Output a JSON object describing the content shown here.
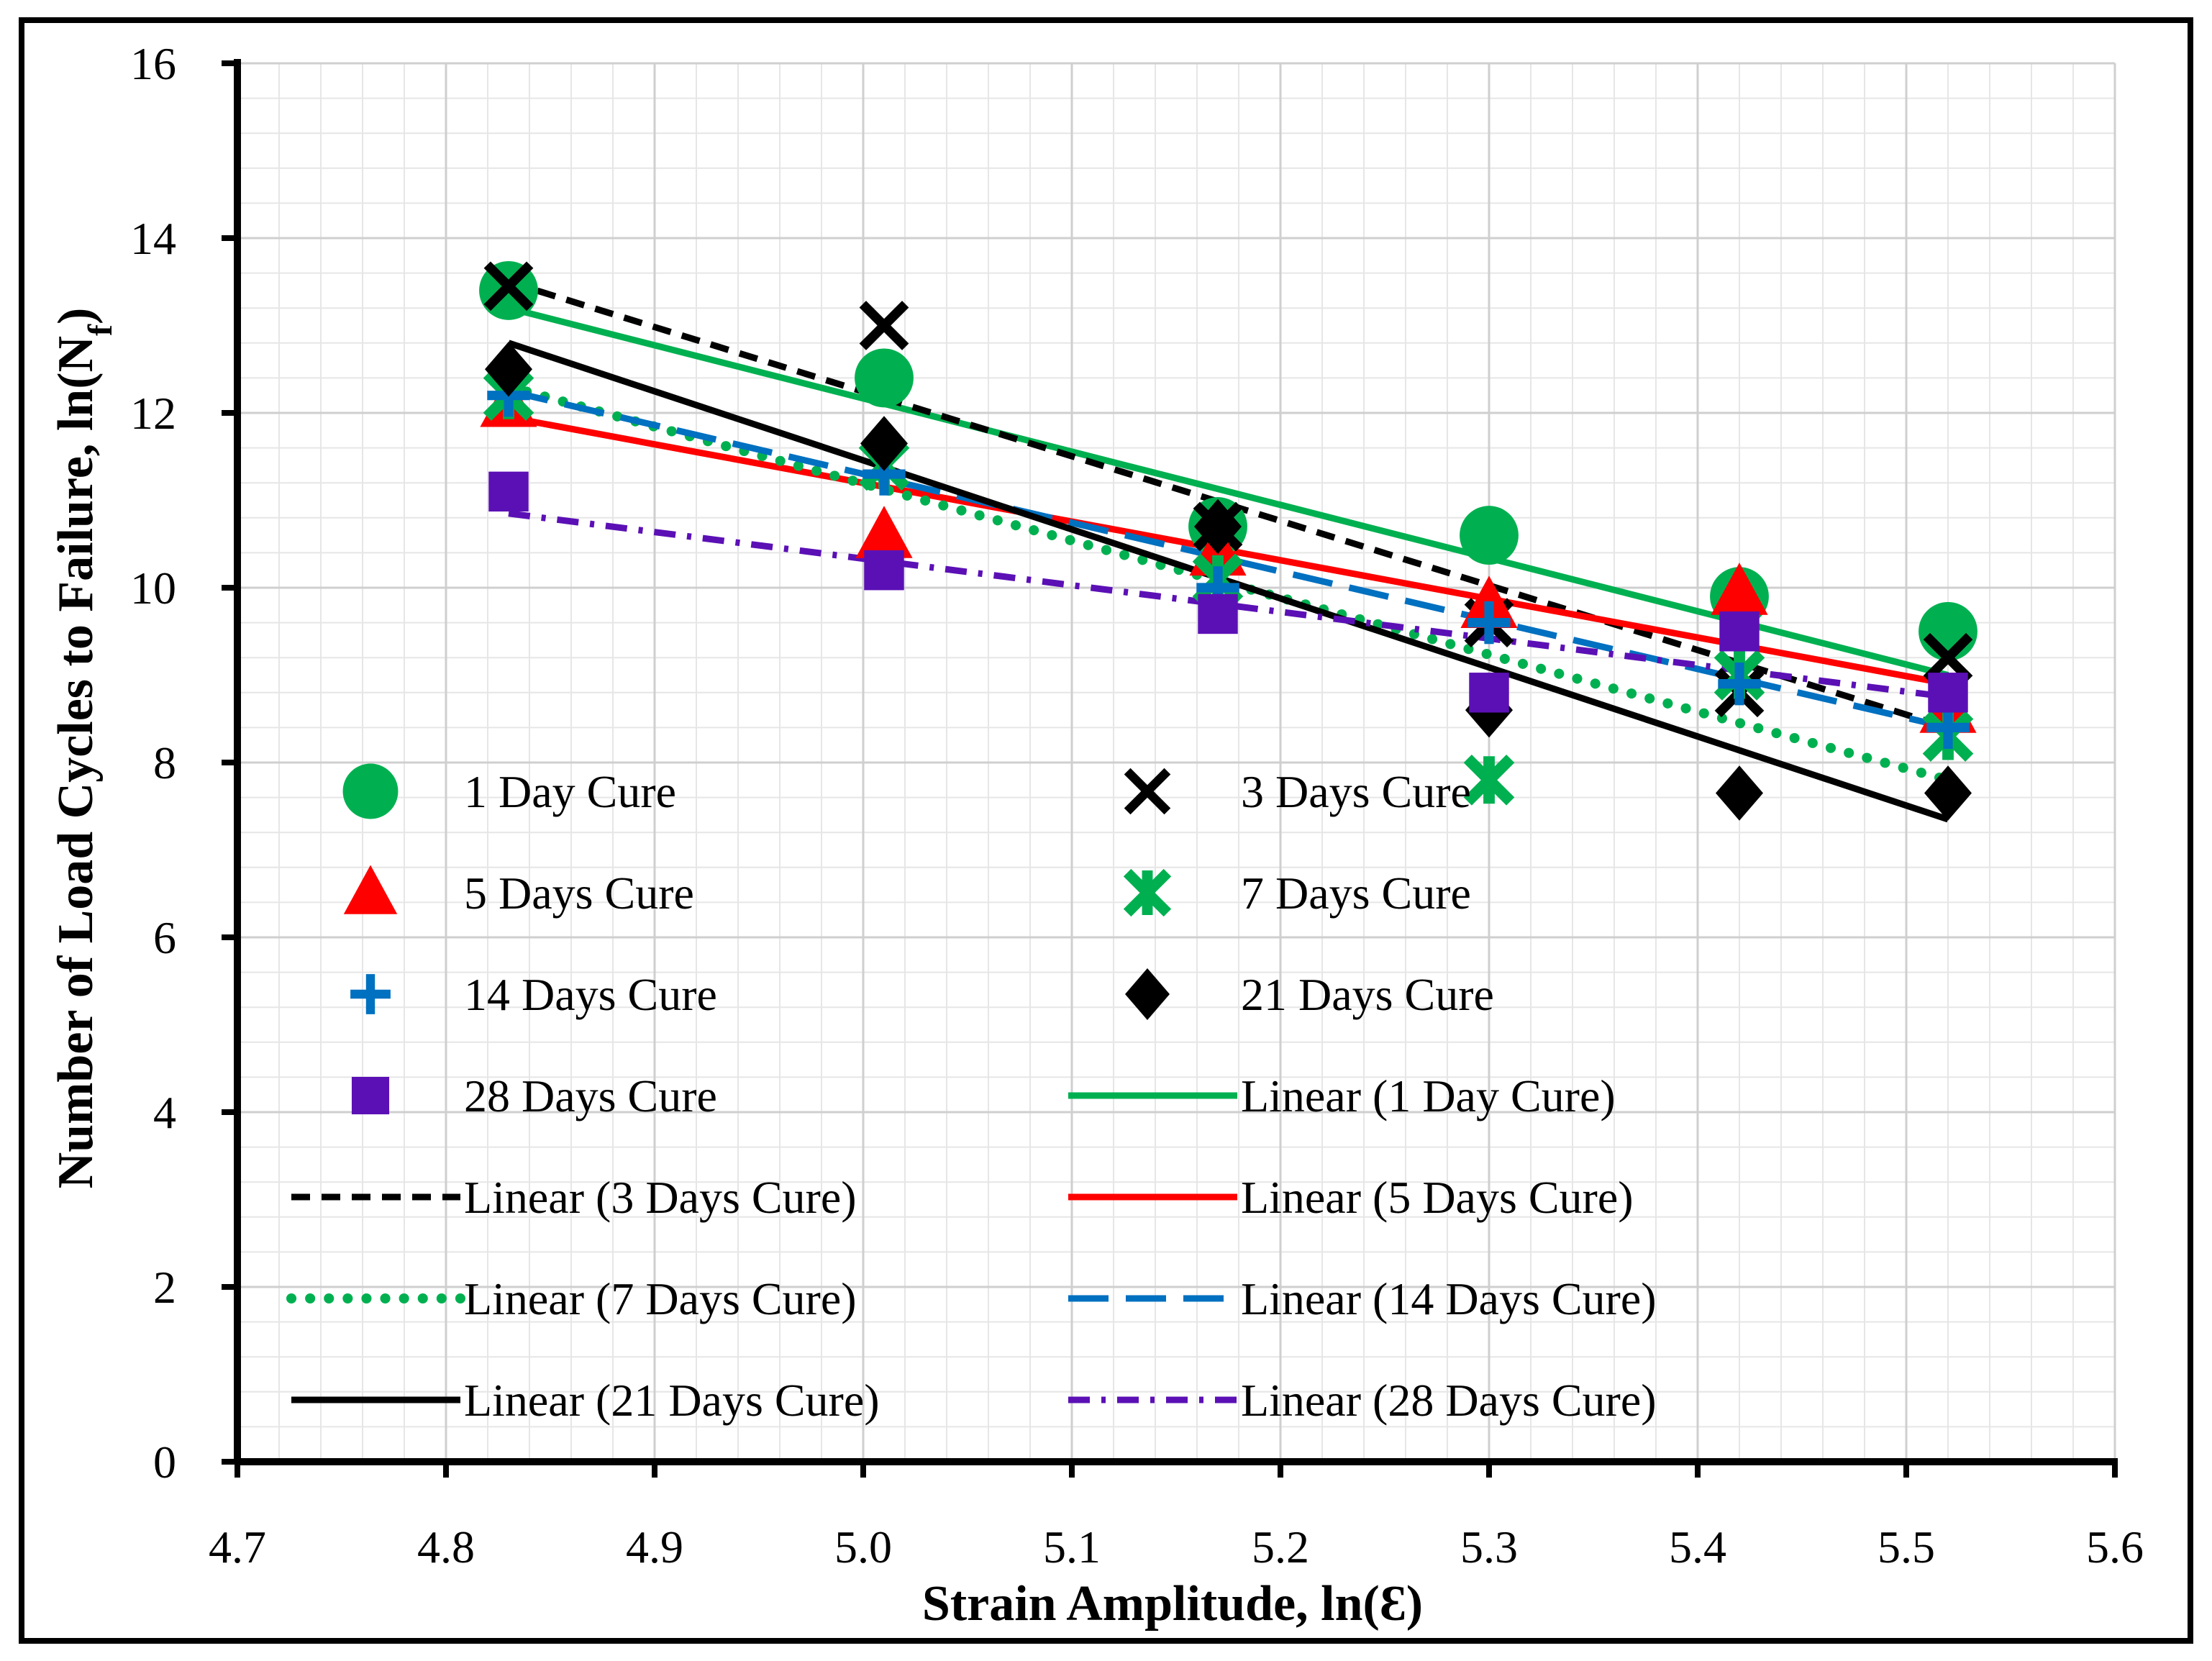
{
  "chart_data": {
    "type": "scatter",
    "xlabel": "Strain Amplitude, ln(Ɛ)",
    "ylabel_main": "Number of Load Cycles to Failure, ln(N",
    "ylabel_sub": "f",
    "ylabel_close": ")",
    "xlim": [
      4.7,
      5.6
    ],
    "ylim": [
      0,
      16
    ],
    "x_ticks": [
      4.7,
      4.8,
      4.9,
      5.0,
      5.1,
      5.2,
      5.3,
      5.4,
      5.5,
      5.6
    ],
    "x_tick_labels": [
      "4.7",
      "4.8",
      "4.9",
      "5.0",
      "5.1",
      "5.2",
      "5.3",
      "5.4",
      "5.5",
      "5.6"
    ],
    "y_ticks": [
      0,
      2,
      4,
      6,
      8,
      10,
      12,
      14,
      16
    ],
    "y_tick_labels": [
      "0",
      "2",
      "4",
      "6",
      "8",
      "10",
      "12",
      "14",
      "16"
    ],
    "grid": true,
    "legend_position": "center-left overlay, two columns",
    "series": [
      {
        "name": "1 Day Cure",
        "marker": "circle",
        "color": "#00B050",
        "x": [
          4.83,
          5.01,
          5.17,
          5.3,
          5.42,
          5.52
        ],
        "y": [
          13.4,
          12.4,
          10.7,
          10.6,
          9.9,
          9.5
        ]
      },
      {
        "name": "3 Days Cure",
        "marker": "x",
        "color": "#000000",
        "x": [
          4.83,
          5.01,
          5.17,
          5.3,
          5.42,
          5.52
        ],
        "y": [
          13.45,
          13.0,
          10.7,
          9.6,
          8.8,
          9.2
        ]
      },
      {
        "name": "5 Days Cure",
        "marker": "triangle",
        "color": "#FF0000",
        "x": [
          4.83,
          5.01,
          5.17,
          5.3,
          5.42,
          5.52
        ],
        "y": [
          12.1,
          10.6,
          10.4,
          9.8,
          9.95,
          8.6
        ]
      },
      {
        "name": "7 Days Cure",
        "marker": "star",
        "color": "#00B050",
        "x": [
          4.83,
          5.01,
          5.17,
          5.3,
          5.42,
          5.52
        ],
        "y": [
          12.2,
          11.4,
          10.1,
          7.8,
          9.0,
          8.3
        ]
      },
      {
        "name": "14 Days Cure",
        "marker": "plus",
        "color": "#0070C0",
        "x": [
          4.83,
          5.01,
          5.17,
          5.3,
          5.42,
          5.52
        ],
        "y": [
          12.2,
          11.3,
          10.0,
          9.6,
          8.9,
          8.4
        ]
      },
      {
        "name": "21 Days Cure",
        "marker": "diamond",
        "color": "#000000",
        "x": [
          4.83,
          5.01,
          5.17,
          5.3,
          5.42,
          5.52
        ],
        "y": [
          12.5,
          11.65,
          10.7,
          8.6,
          7.65,
          7.65
        ]
      },
      {
        "name": "28 Days Cure",
        "marker": "square",
        "color": "#5B10B5",
        "x": [
          4.83,
          5.01,
          5.17,
          5.3,
          5.42,
          5.52
        ],
        "y": [
          11.1,
          10.2,
          9.7,
          8.8,
          9.5,
          8.8
        ]
      }
    ],
    "trendlines": [
      {
        "name": "Linear (1 Day Cure)",
        "color": "#00B050",
        "style": "solid",
        "x": [
          4.83,
          5.52
        ],
        "y": [
          13.2,
          9.0
        ]
      },
      {
        "name": "Linear (3 Days Cure)",
        "color": "#000000",
        "style": "dash",
        "x": [
          4.83,
          5.52
        ],
        "y": [
          13.5,
          8.4
        ]
      },
      {
        "name": "Linear (5 Days Cure)",
        "color": "#FF0000",
        "style": "solid",
        "x": [
          4.83,
          5.52
        ],
        "y": [
          11.95,
          8.9
        ]
      },
      {
        "name": "Linear (7 Days Cure)",
        "color": "#00B050",
        "style": "dot",
        "x": [
          4.83,
          5.52
        ],
        "y": [
          12.3,
          7.8
        ]
      },
      {
        "name": "Linear (14 Days Cure)",
        "color": "#0070C0",
        "style": "longdash",
        "x": [
          4.83,
          5.52
        ],
        "y": [
          12.25,
          8.4
        ]
      },
      {
        "name": "Linear (21 Days Cure)",
        "color": "#000000",
        "style": "solid",
        "x": [
          4.83,
          5.52
        ],
        "y": [
          12.8,
          7.35
        ]
      },
      {
        "name": "Linear (28 Days Cure)",
        "color": "#5B10B5",
        "style": "dashdot",
        "x": [
          4.83,
          5.52
        ],
        "y": [
          10.85,
          8.75
        ]
      }
    ]
  }
}
